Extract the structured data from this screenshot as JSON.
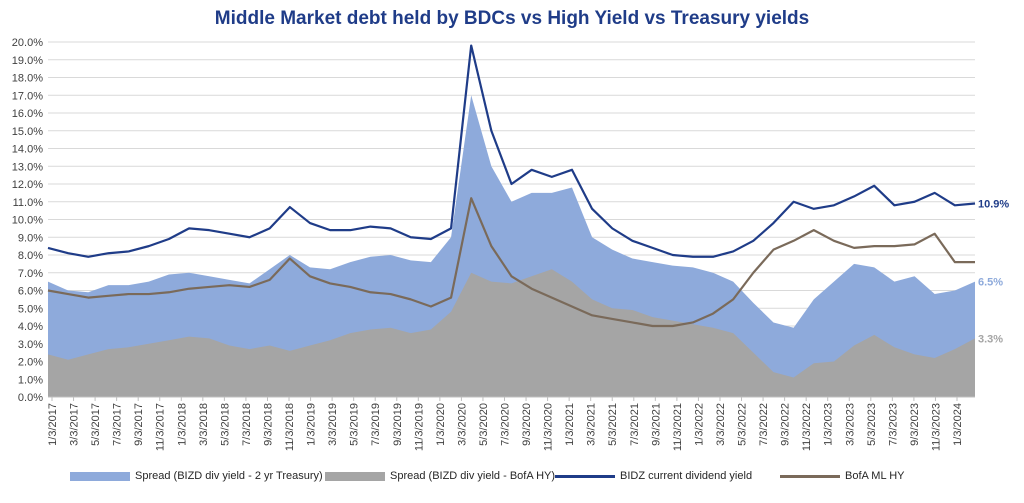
{
  "chart_data": {
    "type": "area",
    "title": "Middle Market debt held by BDCs vs High Yield vs Treasury yields",
    "xlabel": "",
    "ylabel": "",
    "ylim": [
      0,
      20
    ],
    "yticks": [
      "0.0%",
      "1.0%",
      "2.0%",
      "3.0%",
      "4.0%",
      "5.0%",
      "6.0%",
      "7.0%",
      "8.0%",
      "9.0%",
      "10.0%",
      "11.0%",
      "12.0%",
      "13.0%",
      "14.0%",
      "15.0%",
      "16.0%",
      "17.0%",
      "18.0%",
      "19.0%",
      "20.0%"
    ],
    "x_tick_labels": [
      "1/3/2017",
      "3/3/2017",
      "5/3/2017",
      "7/3/2017",
      "9/3/2017",
      "11/3/2017",
      "1/3/2018",
      "3/3/2018",
      "5/3/2018",
      "7/3/2018",
      "9/3/2018",
      "11/3/2018",
      "1/3/2019",
      "3/3/2019",
      "5/3/2019",
      "7/3/2019",
      "9/3/2019",
      "11/3/2019",
      "1/3/2020",
      "3/3/2020",
      "5/3/2020",
      "7/3/2020",
      "9/3/2020",
      "11/3/2020",
      "1/3/2021",
      "3/3/2021",
      "5/3/2021",
      "7/3/2021",
      "9/3/2021",
      "11/3/2021",
      "1/3/2022",
      "3/3/2022",
      "5/3/2022",
      "7/3/2022",
      "9/3/2022",
      "11/3/2022",
      "1/3/2023",
      "3/3/2023",
      "5/3/2023",
      "7/3/2023",
      "9/3/2023",
      "11/3/2023",
      "1/3/2024"
    ],
    "x": [
      "2017-01",
      "2017-03",
      "2017-05",
      "2017-07",
      "2017-09",
      "2017-11",
      "2018-01",
      "2018-03",
      "2018-05",
      "2018-07",
      "2018-09",
      "2018-11",
      "2019-01",
      "2019-03",
      "2019-05",
      "2019-07",
      "2019-09",
      "2019-11",
      "2020-01",
      "2020-02",
      "2020-03",
      "2020-03b",
      "2020-04",
      "2020-05",
      "2020-07",
      "2020-09",
      "2020-11",
      "2021-01",
      "2021-03",
      "2021-05",
      "2021-07",
      "2021-09",
      "2021-11",
      "2022-01",
      "2022-03",
      "2022-05",
      "2022-07",
      "2022-09",
      "2022-11",
      "2023-01",
      "2023-03",
      "2023-05",
      "2023-07",
      "2023-09",
      "2023-11",
      "2024-01",
      "2024-03"
    ],
    "series": [
      {
        "name": "Spread (BIZD div yield - 2 yr Treasury)",
        "color": "#8eaadb",
        "kind": "area",
        "values": [
          6.5,
          6.0,
          5.9,
          6.3,
          6.3,
          6.5,
          6.9,
          7.0,
          6.8,
          6.6,
          6.4,
          7.2,
          8.0,
          7.3,
          7.2,
          7.6,
          7.9,
          8.0,
          7.7,
          7.6,
          9.0,
          17.0,
          13.0,
          11.0,
          11.5,
          11.5,
          11.8,
          9.0,
          8.3,
          7.8,
          7.6,
          7.4,
          7.3,
          7.0,
          6.5,
          5.3,
          4.2,
          3.9,
          5.5,
          6.5,
          7.5,
          7.3,
          6.5,
          6.8,
          5.8,
          6.0,
          6.5
        ],
        "end_label": "6.5%"
      },
      {
        "name": "Spread (BIZD div yield - BofA HY)",
        "color": "#a5a5a5",
        "kind": "area",
        "values": [
          2.4,
          2.1,
          2.4,
          2.7,
          2.8,
          3.0,
          3.2,
          3.4,
          3.3,
          2.9,
          2.7,
          2.9,
          2.6,
          2.9,
          3.2,
          3.6,
          3.8,
          3.9,
          3.6,
          3.8,
          4.8,
          7.0,
          6.5,
          6.4,
          6.8,
          7.2,
          6.5,
          5.5,
          5.0,
          4.9,
          4.5,
          4.3,
          4.1,
          3.9,
          3.6,
          2.5,
          1.4,
          1.1,
          1.9,
          2.0,
          2.9,
          3.5,
          2.8,
          2.4,
          2.2,
          2.7,
          3.3
        ],
        "end_label": "3.3%"
      },
      {
        "name": "BIDZ current dividend yield",
        "color": "#1f3c88",
        "kind": "line",
        "values": [
          8.4,
          8.1,
          7.9,
          8.1,
          8.2,
          8.5,
          8.9,
          9.5,
          9.4,
          9.2,
          9.0,
          9.5,
          10.7,
          9.8,
          9.4,
          9.4,
          9.6,
          9.5,
          9.0,
          8.9,
          9.5,
          19.8,
          15.0,
          12.0,
          12.8,
          12.4,
          12.8,
          10.6,
          9.5,
          8.8,
          8.4,
          8.0,
          7.9,
          7.9,
          8.2,
          8.8,
          9.8,
          11.0,
          10.6,
          10.8,
          11.3,
          11.9,
          10.8,
          11.0,
          11.5,
          10.8,
          10.9
        ],
        "end_label": "10.9%"
      },
      {
        "name": "BofA ML HY",
        "color": "#7a6a5a",
        "kind": "line",
        "values": [
          6.0,
          5.8,
          5.6,
          5.7,
          5.8,
          5.8,
          5.9,
          6.1,
          6.2,
          6.3,
          6.2,
          6.6,
          7.8,
          6.8,
          6.4,
          6.2,
          5.9,
          5.8,
          5.5,
          5.1,
          5.6,
          11.2,
          8.5,
          6.8,
          6.1,
          5.6,
          5.1,
          4.6,
          4.4,
          4.2,
          4.0,
          4.0,
          4.2,
          4.7,
          5.5,
          7.0,
          8.3,
          8.8,
          9.4,
          8.8,
          8.4,
          8.5,
          8.5,
          8.6,
          9.2,
          7.6,
          7.6
        ],
        "end_label": ""
      }
    ],
    "grid": true,
    "legend_position": "bottom"
  }
}
